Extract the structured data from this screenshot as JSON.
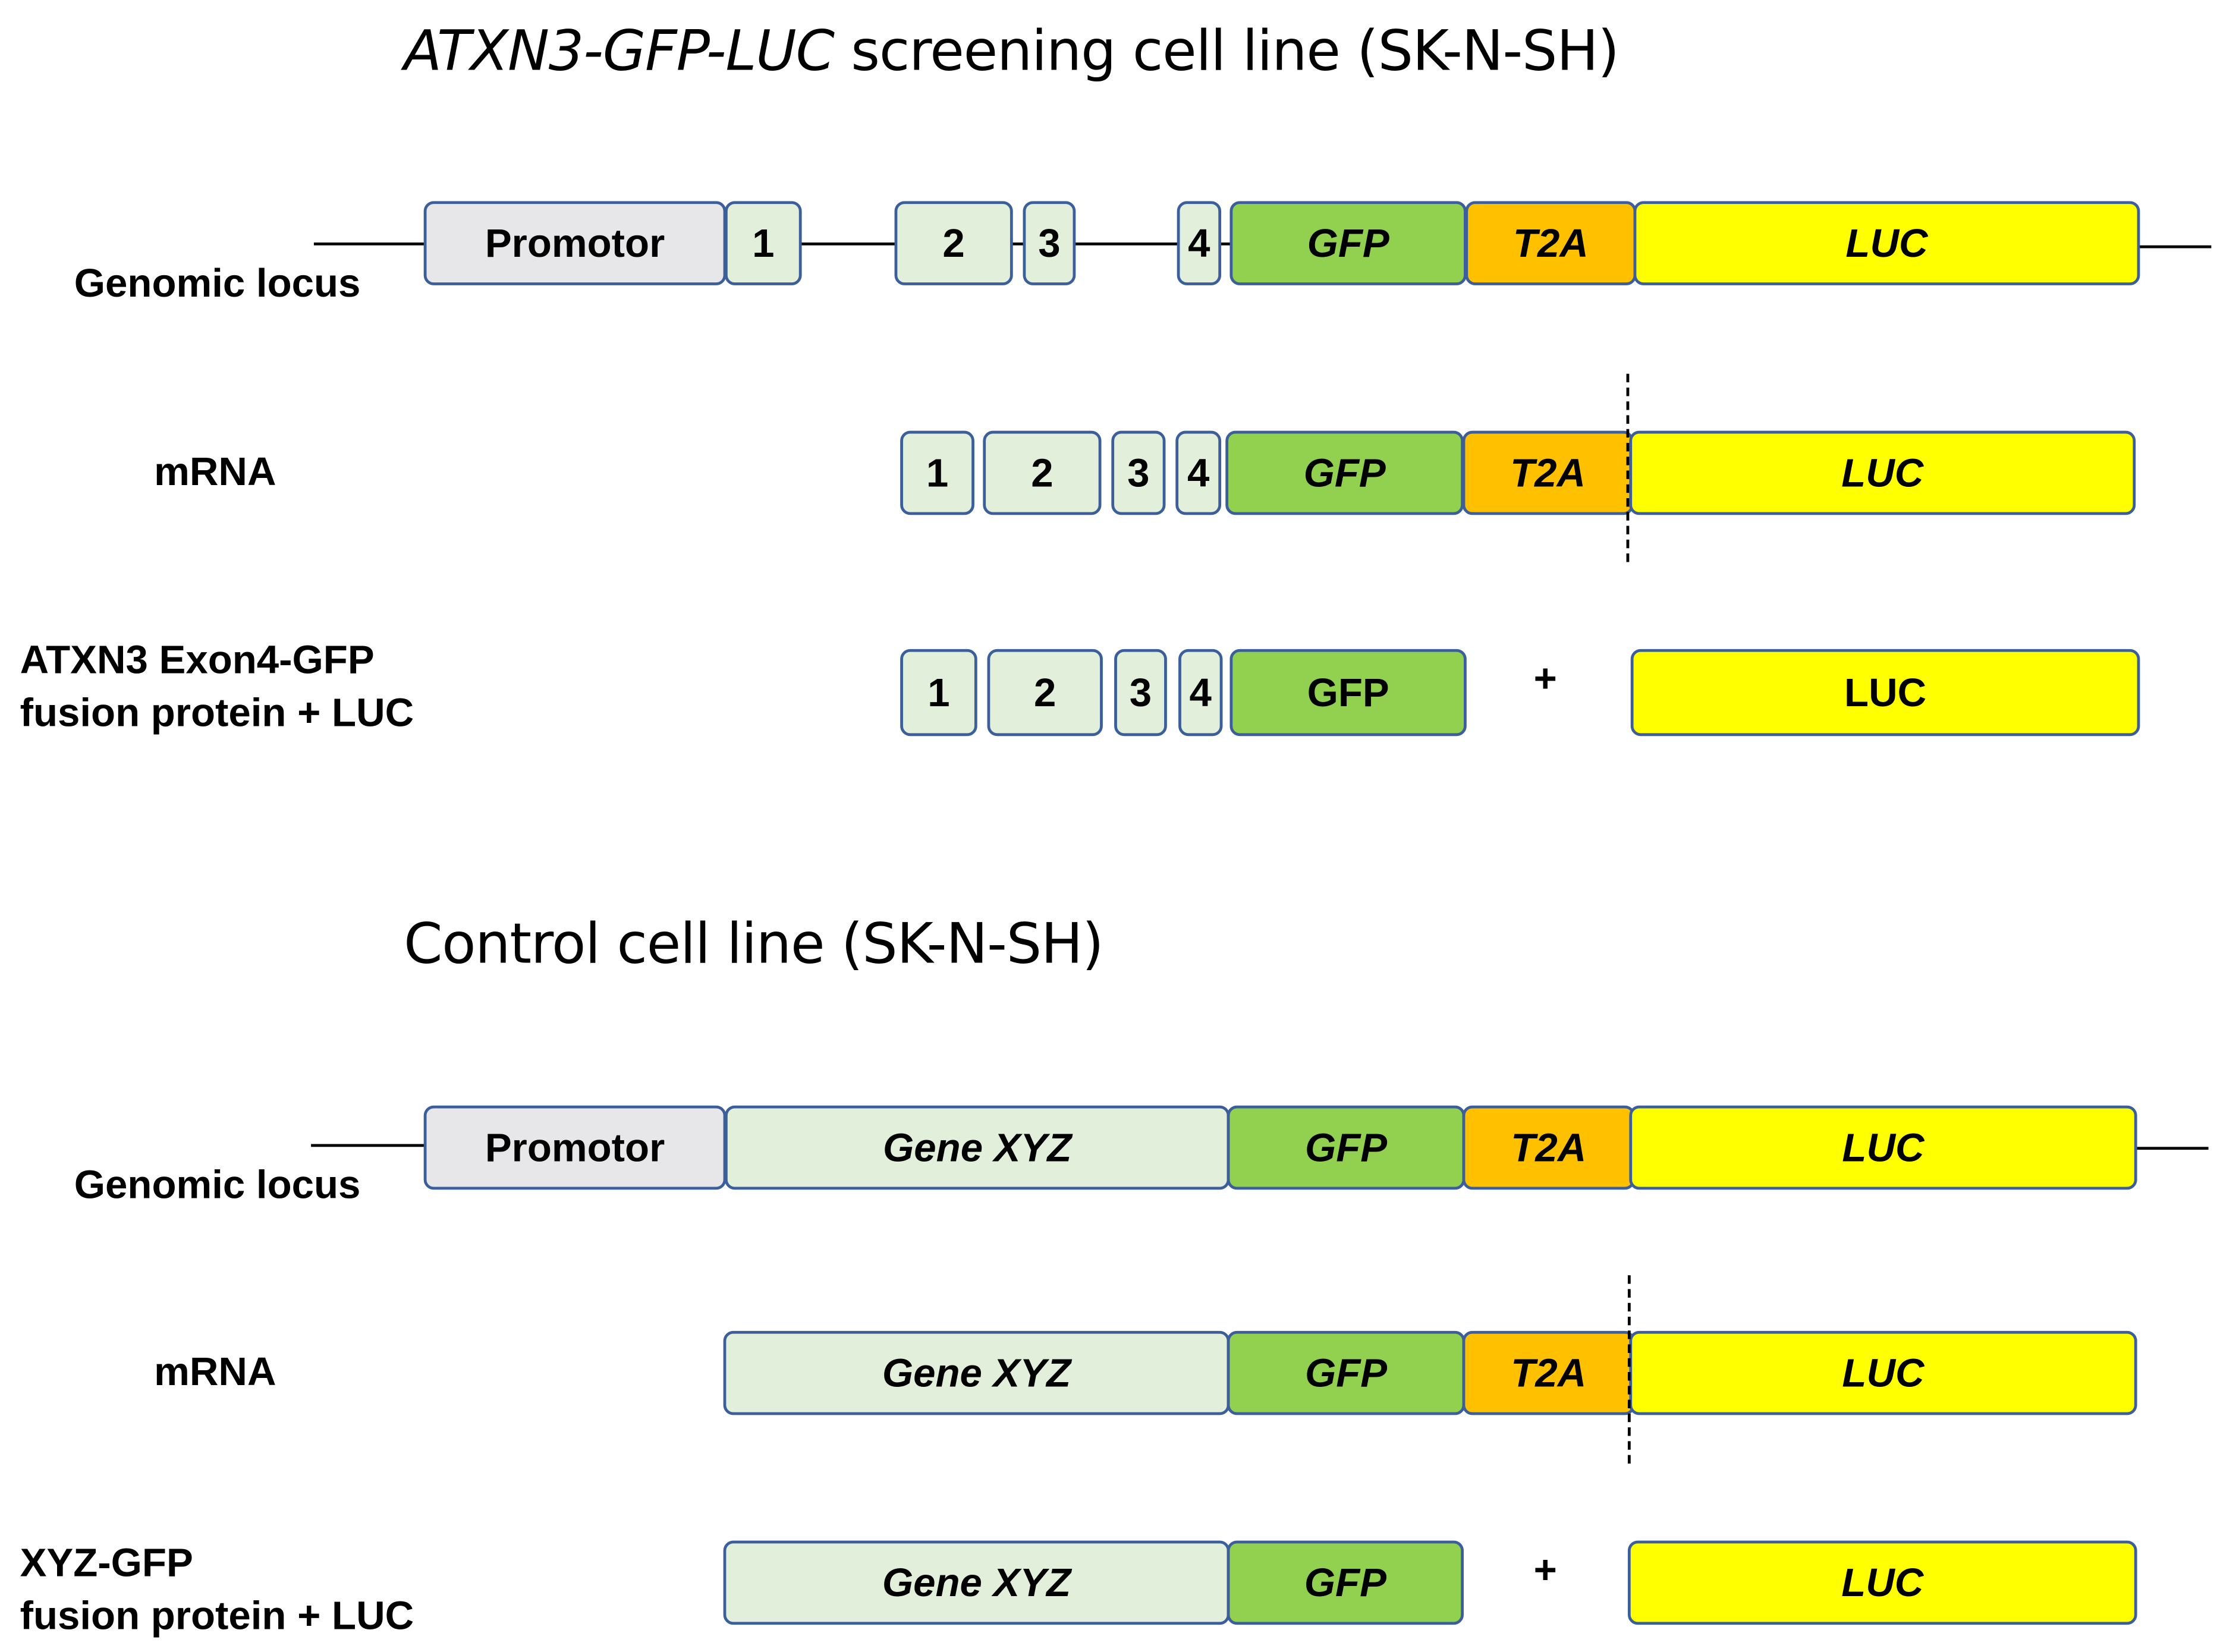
{
  "titles": {
    "top_italic": "ATXN3-GFP-LUC",
    "top_rest": " screening cell line (SK-N-SH)",
    "bottom": "Control cell line (SK-N-SH)"
  },
  "row_labels": {
    "genomic_locus": "Genomic locus",
    "mrna": "mRNA",
    "atxn3_line1": "ATXN3 Exon4-GFP",
    "atxn3_line2": "fusion protein + LUC",
    "xyz_line1": "XYZ-GFP",
    "xyz_line2": "fusion protein + LUC"
  },
  "segments": {
    "promotor": "Promotor",
    "exon1": "1",
    "exon2": "2",
    "exon3": "3",
    "exon4": "4",
    "gfp": "GFP",
    "t2a": "T2A",
    "luc": "LUC",
    "gene_xyz": "Gene XYZ",
    "plus": "+"
  },
  "colors": {
    "promotor": "#e7e7ea",
    "exon": "#e2efdb",
    "gfp": "#92d050",
    "t2a": "#ffc000",
    "luc": "#ffff00",
    "border": "#3c5f9c"
  }
}
